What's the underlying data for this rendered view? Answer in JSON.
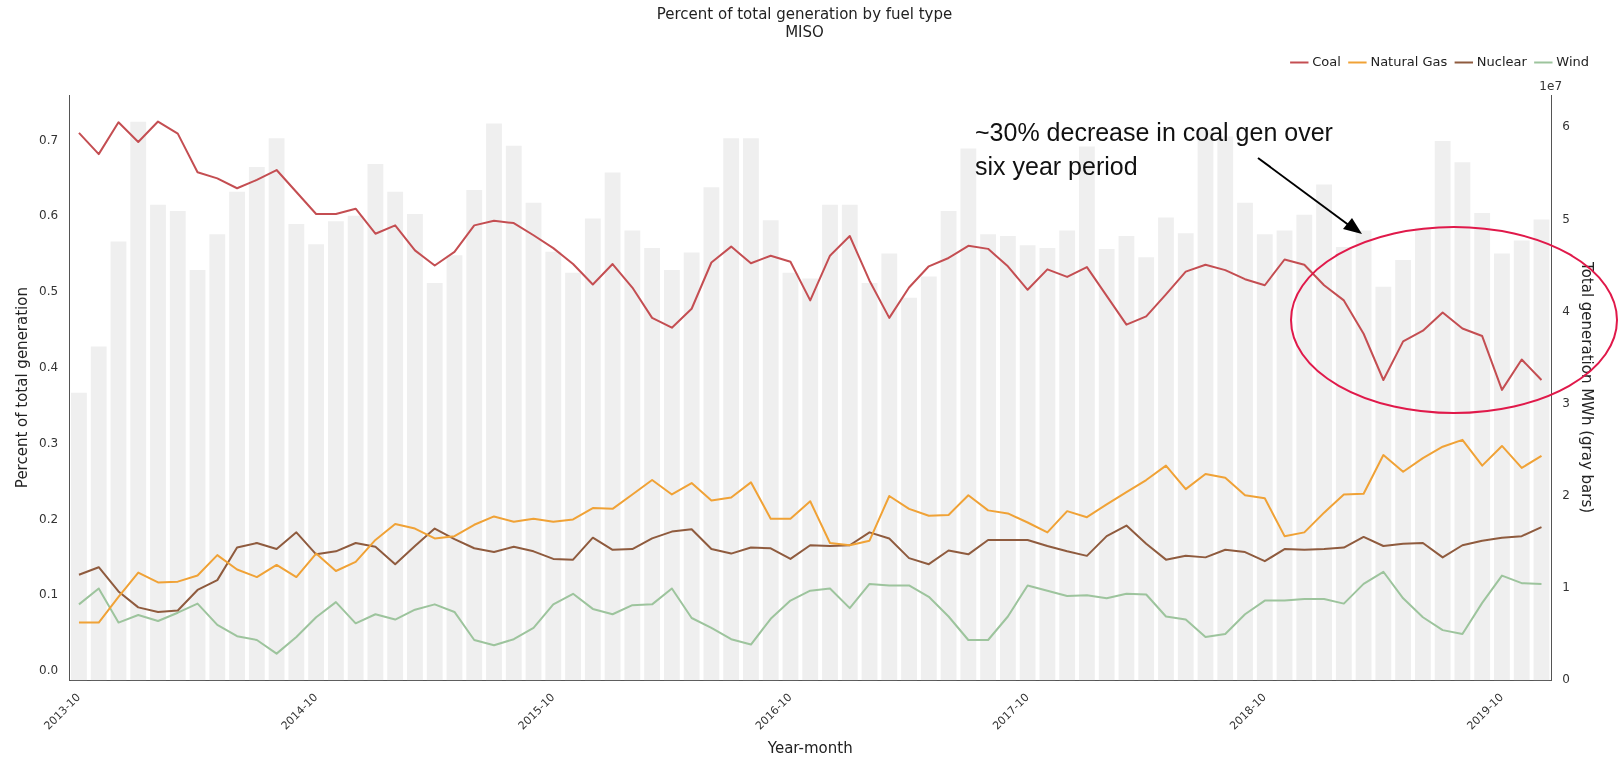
{
  "chart_data": {
    "type": "line",
    "title": "Percent of total generation by fuel type",
    "subtitle": "MISO",
    "xlabel": "Year-month",
    "ylabel": "Percent of total generation",
    "y2label": "Total generation MWh (gray bars)",
    "annotations": [
      "~30% decrease in coal gen over six year period",
      "1e7"
    ],
    "x": [
      "2013-10",
      "2013-11",
      "2013-12",
      "2014-01",
      "2014-02",
      "2014-03",
      "2014-04",
      "2014-05",
      "2014-06",
      "2014-07",
      "2014-08",
      "2014-09",
      "2014-10",
      "2014-11",
      "2014-12",
      "2015-01",
      "2015-02",
      "2015-03",
      "2015-04",
      "2015-05",
      "2015-06",
      "2015-07",
      "2015-08",
      "2015-09",
      "2015-10",
      "2015-11",
      "2015-12",
      "2016-01",
      "2016-02",
      "2016-03",
      "2016-04",
      "2016-05",
      "2016-06",
      "2016-07",
      "2016-08",
      "2016-09",
      "2016-10",
      "2016-11",
      "2016-12",
      "2017-01",
      "2017-02",
      "2017-03",
      "2017-04",
      "2017-05",
      "2017-06",
      "2017-07",
      "2017-08",
      "2017-09",
      "2017-10",
      "2017-11",
      "2017-12",
      "2018-01",
      "2018-02",
      "2018-03",
      "2018-04",
      "2018-05",
      "2018-06",
      "2018-07",
      "2018-08",
      "2018-09",
      "2018-10",
      "2018-11",
      "2018-12",
      "2019-01",
      "2019-02",
      "2019-03",
      "2019-04",
      "2019-05",
      "2019-06",
      "2019-07",
      "2019-08",
      "2019-09",
      "2019-10",
      "2019-11",
      "2019-12"
    ],
    "xlim": [
      "2013-10",
      "2019-12"
    ],
    "xticks": [
      "2013-10",
      "2014-10",
      "2015-10",
      "2016-10",
      "2017-10",
      "2018-10",
      "2019-10"
    ],
    "series": [
      {
        "type": "bar",
        "axis": "y2",
        "color": "#efefef",
        "values": [
          3.12,
          3.62,
          4.76,
          6.06,
          5.16,
          5.09,
          4.45,
          4.84,
          5.3,
          5.57,
          5.88,
          4.95,
          4.73,
          4.98,
          5.04,
          5.6,
          5.3,
          5.06,
          4.31,
          4.61,
          5.32,
          6.04,
          5.8,
          5.18,
          4.65,
          4.42,
          5.01,
          5.51,
          4.88,
          4.69,
          4.45,
          4.64,
          5.35,
          5.88,
          5.88,
          4.99,
          4.42,
          4.36,
          5.16,
          5.16,
          4.31,
          4.63,
          4.15,
          4.38,
          5.09,
          5.77,
          4.84,
          4.82,
          4.72,
          4.69,
          4.88,
          5.79,
          4.68,
          4.82,
          4.59,
          5.02,
          4.85,
          5.97,
          5.9,
          5.18,
          4.84,
          4.88,
          5.05,
          5.38,
          4.7,
          4.88,
          4.27,
          4.56,
          4.91,
          5.85,
          5.62,
          5.07,
          4.63,
          4.77,
          5.0
        ]
      },
      {
        "name": "Coal",
        "color": "#c44e52",
        "values": [
          0.71,
          0.682,
          0.724,
          0.698,
          0.725,
          0.709,
          0.658,
          0.65,
          0.637,
          0.648,
          0.661,
          0.632,
          0.603,
          0.603,
          0.61,
          0.577,
          0.588,
          0.555,
          0.535,
          0.553,
          0.588,
          0.594,
          0.591,
          0.575,
          0.558,
          0.537,
          0.51,
          0.537,
          0.506,
          0.466,
          0.453,
          0.478,
          0.539,
          0.56,
          0.538,
          0.548,
          0.54,
          0.489,
          0.548,
          0.574,
          0.515,
          0.466,
          0.506,
          0.534,
          0.545,
          0.561,
          0.557,
          0.534,
          0.503,
          0.53,
          0.52,
          0.533,
          0.495,
          0.457,
          0.468,
          0.497,
          0.527,
          0.536,
          0.529,
          0.517,
          0.509,
          0.543,
          0.536,
          0.509,
          0.489,
          0.445,
          0.384,
          0.435,
          0.449,
          0.473,
          0.452,
          0.442,
          0.371,
          0.411,
          0.384
        ]
      },
      {
        "name": "Natural Gas",
        "color": "#f0a236",
        "values": [
          0.064,
          0.064,
          0.098,
          0.13,
          0.117,
          0.118,
          0.126,
          0.153,
          0.134,
          0.124,
          0.14,
          0.124,
          0.155,
          0.132,
          0.144,
          0.173,
          0.194,
          0.188,
          0.175,
          0.178,
          0.193,
          0.204,
          0.197,
          0.201,
          0.197,
          0.2,
          0.215,
          0.214,
          0.233,
          0.252,
          0.233,
          0.248,
          0.225,
          0.229,
          0.249,
          0.201,
          0.201,
          0.224,
          0.169,
          0.166,
          0.172,
          0.231,
          0.214,
          0.205,
          0.206,
          0.232,
          0.212,
          0.208,
          0.196,
          0.183,
          0.211,
          0.203,
          0.22,
          0.236,
          0.252,
          0.271,
          0.24,
          0.26,
          0.255,
          0.232,
          0.228,
          0.178,
          0.183,
          0.209,
          0.233,
          0.234,
          0.285,
          0.263,
          0.281,
          0.296,
          0.305,
          0.271,
          0.297,
          0.268,
          0.284
        ]
      },
      {
        "name": "Nuclear",
        "color": "#8f5b3e",
        "values": [
          0.127,
          0.137,
          0.105,
          0.084,
          0.078,
          0.08,
          0.107,
          0.12,
          0.163,
          0.169,
          0.161,
          0.183,
          0.154,
          0.158,
          0.169,
          0.164,
          0.141,
          0.165,
          0.188,
          0.174,
          0.162,
          0.157,
          0.164,
          0.158,
          0.148,
          0.147,
          0.176,
          0.16,
          0.161,
          0.175,
          0.184,
          0.187,
          0.161,
          0.155,
          0.163,
          0.162,
          0.148,
          0.166,
          0.165,
          0.166,
          0.183,
          0.175,
          0.149,
          0.141,
          0.159,
          0.154,
          0.173,
          0.173,
          0.173,
          0.165,
          0.158,
          0.152,
          0.178,
          0.192,
          0.168,
          0.147,
          0.152,
          0.15,
          0.16,
          0.157,
          0.145,
          0.161,
          0.16,
          0.161,
          0.163,
          0.177,
          0.165,
          0.168,
          0.169,
          0.15,
          0.166,
          0.172,
          0.176,
          0.178,
          0.19
        ]
      },
      {
        "name": "Wind",
        "color": "#9dc49d",
        "values": [
          0.088,
          0.109,
          0.064,
          0.074,
          0.066,
          0.077,
          0.089,
          0.061,
          0.046,
          0.041,
          0.023,
          0.045,
          0.071,
          0.091,
          0.063,
          0.075,
          0.068,
          0.081,
          0.088,
          0.078,
          0.041,
          0.034,
          0.042,
          0.057,
          0.088,
          0.102,
          0.082,
          0.075,
          0.087,
          0.088,
          0.109,
          0.07,
          0.057,
          0.042,
          0.035,
          0.069,
          0.093,
          0.106,
          0.109,
          0.083,
          0.115,
          0.113,
          0.113,
          0.098,
          0.072,
          0.041,
          0.041,
          0.072,
          0.113,
          0.106,
          0.099,
          0.1,
          0.096,
          0.102,
          0.101,
          0.072,
          0.068,
          0.045,
          0.049,
          0.075,
          0.093,
          0.093,
          0.095,
          0.095,
          0.089,
          0.115,
          0.131,
          0.096,
          0.071,
          0.054,
          0.049,
          0.09,
          0.126,
          0.116,
          0.115
        ]
      }
    ],
    "ylim": [
      -0.012,
      0.76
    ],
    "yticks": [
      {
        "value": 0,
        "label": "0.0"
      },
      0.1,
      0.2,
      0.3,
      0.4,
      0.5,
      0.6,
      0.7
    ],
    "y2lim": [
      0,
      6.35
    ],
    "y2ticks": [
      0,
      1,
      2,
      3,
      4,
      5,
      6
    ],
    "legend": "top right"
  }
}
